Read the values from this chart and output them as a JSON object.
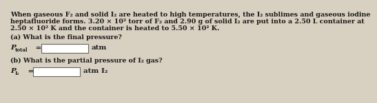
{
  "background_color": "#d8d0c0",
  "text_color": "#1a1a1a",
  "line1": "When gaseous F₂ and solid I₂ are heated to high temperatures, the I₂ sublimes and gaseous iodine",
  "line2": "heptafluoride forms. 3.20 × 10² torr of F₂ and 2.90 g of solid I₂ are put into a 2.50 L container at",
  "line3": "2.50 × 10² K and the container is heated to 5.50 × 10² K.",
  "part_a": "(a) What is the final pressure?",
  "ptotal_P": "P",
  "ptotal_sub": "total",
  "ptotal_eq": " =",
  "ptotal_unit": "atm",
  "part_b": "(b) What is the partial pressure of I₂ gas?",
  "pi2_P": "P",
  "pi2_sub": "I₂",
  "pi2_eq": " =",
  "pi2_unit": "atm I₂",
  "box_facecolor": "#ffffff",
  "box_edgecolor": "#666666",
  "font_size_body": 6.8,
  "font_size_answer": 7.5
}
